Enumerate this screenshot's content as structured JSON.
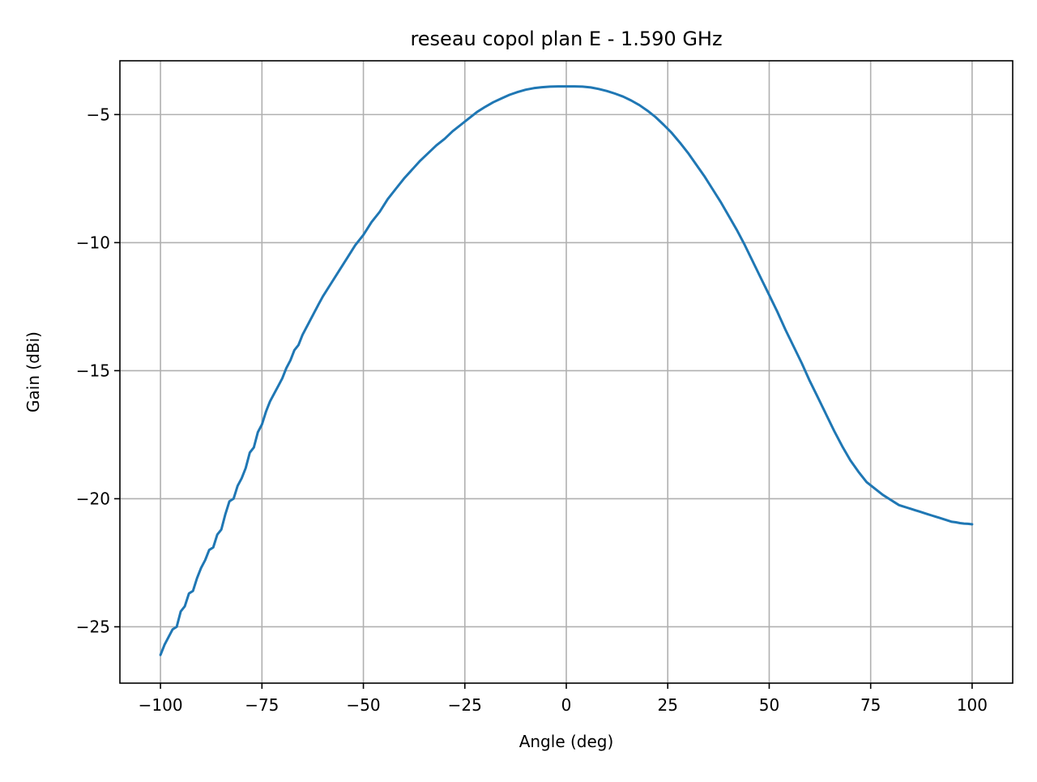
{
  "chart_data": {
    "type": "line",
    "title": "reseau copol plan E - 1.590 GHz",
    "xlabel": "Angle (deg)",
    "ylabel": "Gain (dBi)",
    "xlim": [
      -110,
      110
    ],
    "ylim": [
      -27.2,
      -2.9
    ],
    "xticks": [
      -100,
      -75,
      -50,
      -25,
      0,
      25,
      50,
      75,
      100
    ],
    "yticks": [
      -25,
      -20,
      -15,
      -10,
      -5
    ],
    "xtick_labels": [
      "−100",
      "−75",
      "−50",
      "−25",
      "0",
      "25",
      "50",
      "75",
      "100"
    ],
    "ytick_labels": [
      "−25",
      "−20",
      "−15",
      "−10",
      "−5"
    ],
    "grid": true,
    "legend": "none",
    "line_color": "#1f77b4",
    "grid_color": "#b0b0b0",
    "series": [
      {
        "x": [
          -100,
          -99,
          -98,
          -97,
          -96,
          -95,
          -94,
          -93,
          -92,
          -91,
          -90,
          -89,
          -88,
          -87,
          -86,
          -85,
          -84,
          -83,
          -82,
          -81,
          -80,
          -79,
          -78,
          -77,
          -76,
          -75,
          -74,
          -73,
          -72,
          -71,
          -70,
          -69,
          -68,
          -67,
          -66,
          -65,
          -64,
          -63,
          -62,
          -61,
          -60,
          -58,
          -56,
          -54,
          -52,
          -50,
          -48,
          -46,
          -44,
          -42,
          -40,
          -38,
          -36,
          -34,
          -32,
          -30,
          -28,
          -26,
          -24,
          -22,
          -20,
          -18,
          -16,
          -14,
          -12,
          -10,
          -8,
          -6,
          -4,
          -2,
          0,
          2,
          4,
          6,
          8,
          10,
          12,
          14,
          16,
          18,
          20,
          22,
          24,
          26,
          28,
          30,
          32,
          34,
          36,
          38,
          40,
          42,
          44,
          46,
          48,
          50,
          52,
          54,
          56,
          58,
          60,
          62,
          64,
          66,
          68,
          70,
          72,
          74,
          76,
          78,
          80,
          81,
          82,
          83,
          84,
          85,
          86,
          87,
          88,
          89,
          90,
          91,
          92,
          93,
          94,
          95,
          96,
          97,
          98,
          99,
          100
        ],
        "y": [
          -26.1,
          -25.7,
          -25.4,
          -25.1,
          -25.0,
          -24.4,
          -24.2,
          -23.7,
          -23.6,
          -23.1,
          -22.7,
          -22.4,
          -22.0,
          -21.9,
          -21.4,
          -21.2,
          -20.6,
          -20.1,
          -20.0,
          -19.5,
          -19.2,
          -18.8,
          -18.2,
          -18.0,
          -17.4,
          -17.1,
          -16.6,
          -16.2,
          -15.9,
          -15.6,
          -15.3,
          -14.9,
          -14.6,
          -14.2,
          -14.0,
          -13.6,
          -13.3,
          -13.0,
          -12.7,
          -12.4,
          -12.1,
          -11.6,
          -11.1,
          -10.6,
          -10.1,
          -9.7,
          -9.2,
          -8.8,
          -8.3,
          -7.9,
          -7.5,
          -7.15,
          -6.8,
          -6.5,
          -6.2,
          -5.95,
          -5.65,
          -5.4,
          -5.15,
          -4.9,
          -4.7,
          -4.52,
          -4.37,
          -4.23,
          -4.12,
          -4.03,
          -3.97,
          -3.93,
          -3.91,
          -3.9,
          -3.9,
          -3.9,
          -3.91,
          -3.94,
          -4.0,
          -4.08,
          -4.18,
          -4.3,
          -4.45,
          -4.63,
          -4.85,
          -5.1,
          -5.4,
          -5.72,
          -6.1,
          -6.5,
          -6.95,
          -7.4,
          -7.9,
          -8.4,
          -8.95,
          -9.5,
          -10.1,
          -10.75,
          -11.4,
          -12.05,
          -12.7,
          -13.4,
          -14.05,
          -14.7,
          -15.4,
          -16.05,
          -16.7,
          -17.35,
          -17.95,
          -18.5,
          -18.95,
          -19.35,
          -19.6,
          -19.85,
          -20.05,
          -20.15,
          -20.25,
          -20.3,
          -20.35,
          -20.4,
          -20.45,
          -20.5,
          -20.55,
          -20.6,
          -20.65,
          -20.7,
          -20.75,
          -20.8,
          -20.85,
          -20.9,
          -20.92,
          -20.95,
          -20.97,
          -20.98,
          -21.0
        ]
      }
    ]
  }
}
